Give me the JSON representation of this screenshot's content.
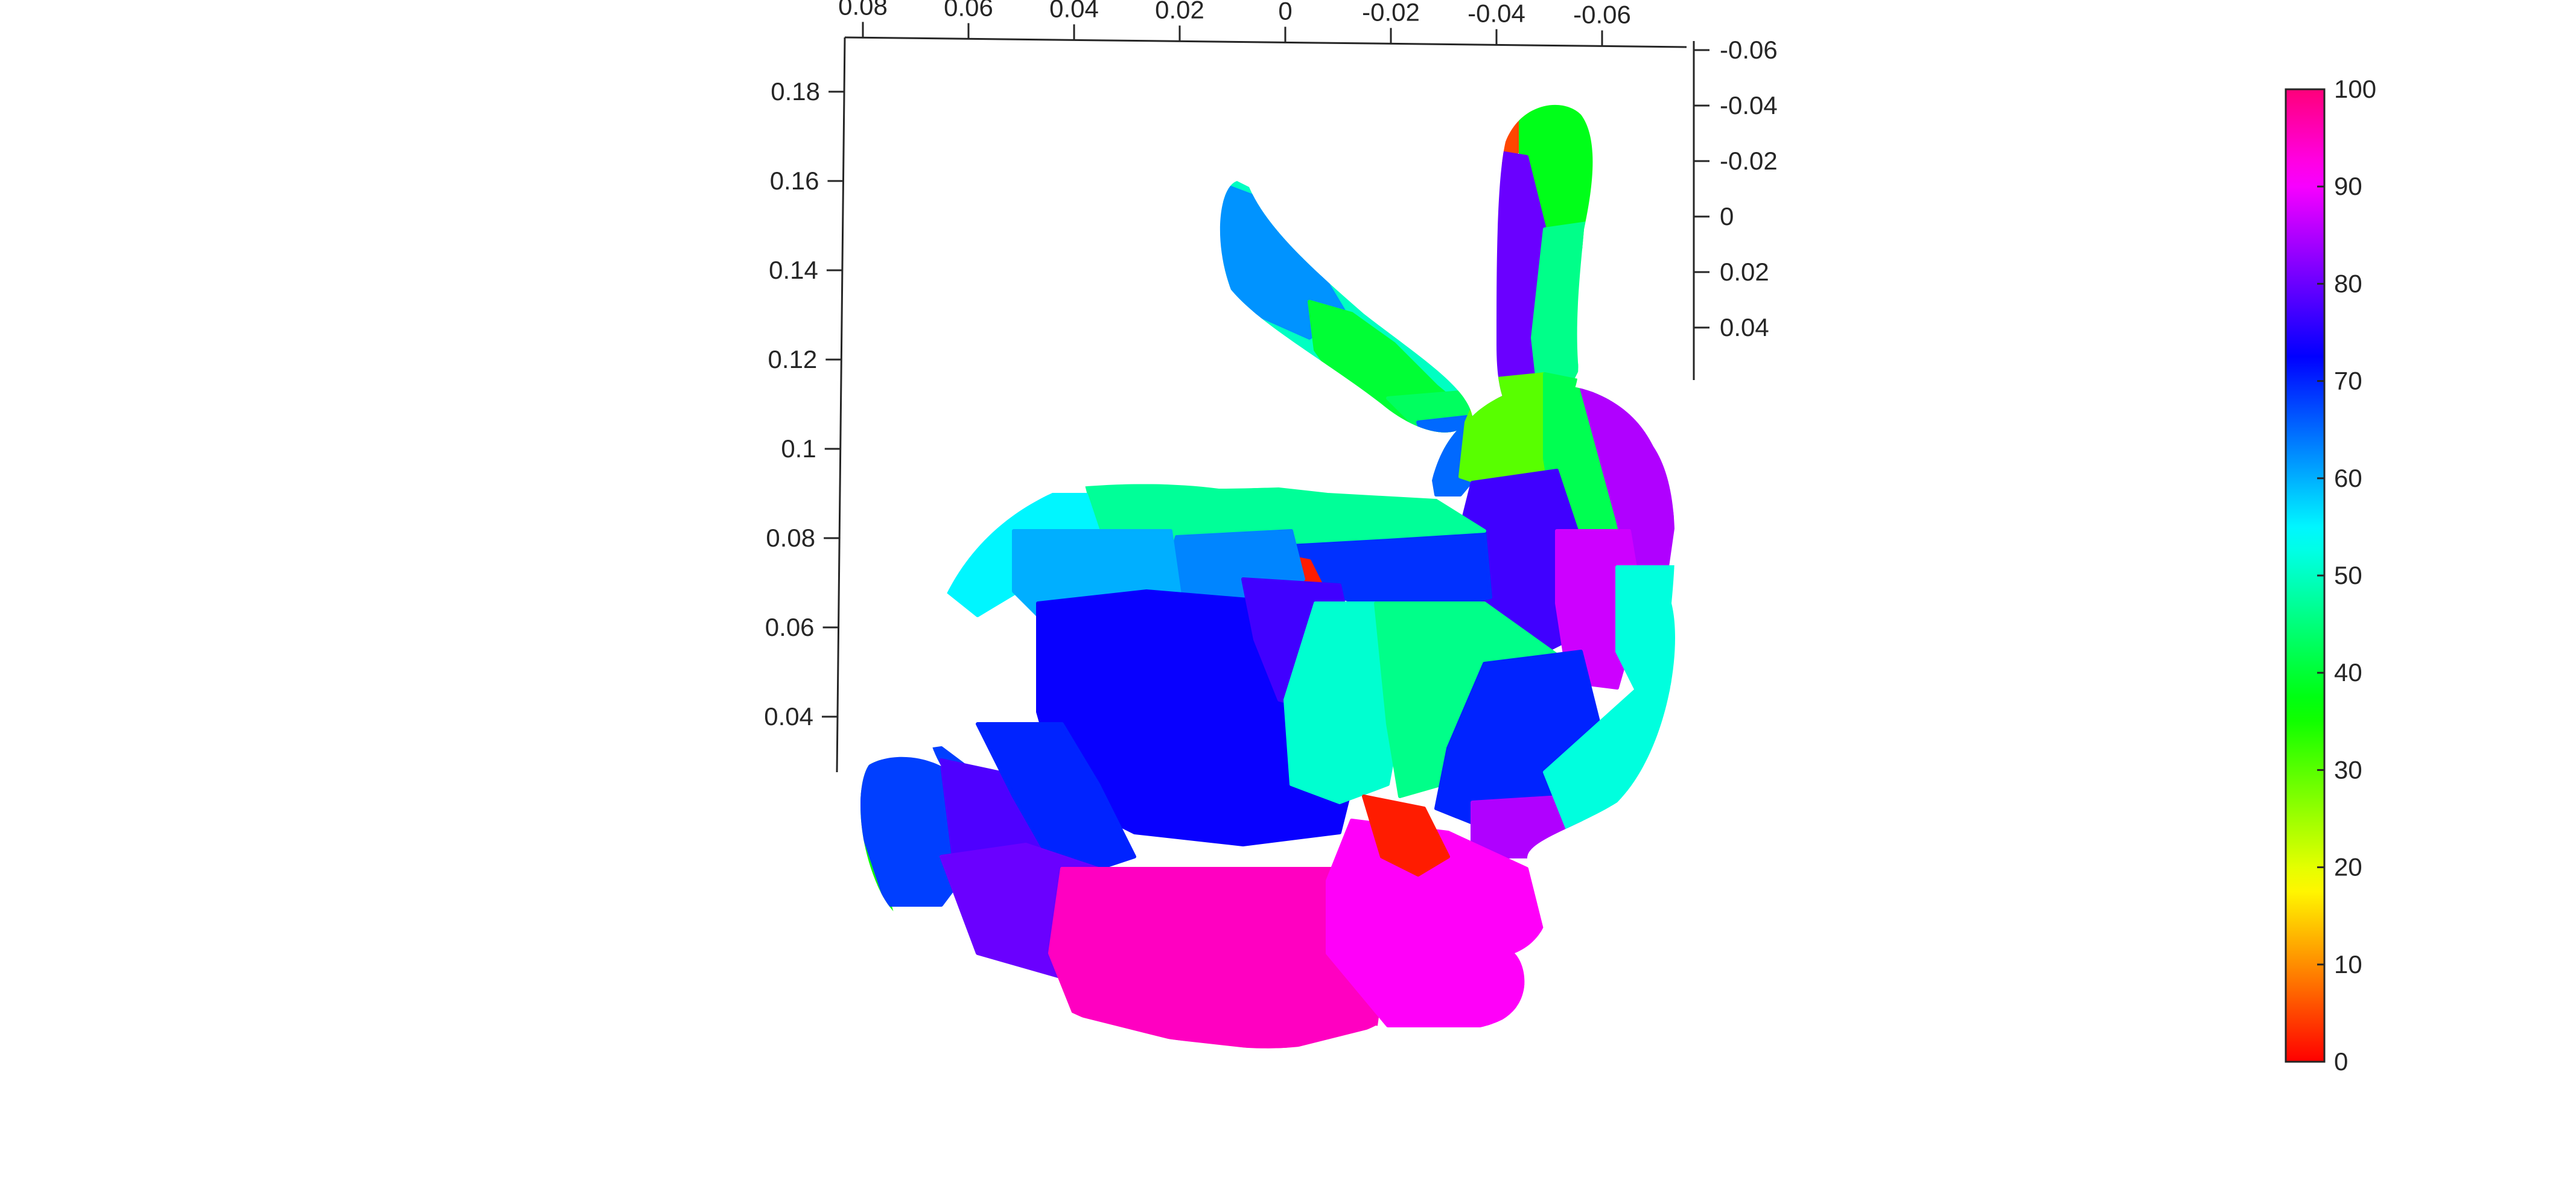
{
  "chart_data": {
    "type": "surface",
    "title": "",
    "xlabel": "",
    "ylabel": "",
    "zlabel": "",
    "grid": false,
    "box": false,
    "top_axis": {
      "ticks": [
        {
          "value": -0.06,
          "label": "-0.06"
        },
        {
          "value": -0.04,
          "label": "-0.04"
        },
        {
          "value": -0.02,
          "label": "-0.02"
        },
        {
          "value": 0,
          "label": "0"
        },
        {
          "value": 0.02,
          "label": "0.02"
        },
        {
          "value": 0.04,
          "label": "0.04"
        },
        {
          "value": 0.06,
          "label": "0.06"
        },
        {
          "value": 0.08,
          "label": "0.08"
        }
      ]
    },
    "left_axis": {
      "label": "",
      "ticks": [
        {
          "value": 0.18,
          "label": "0.18"
        },
        {
          "value": 0.16,
          "label": "0.16"
        },
        {
          "value": 0.14,
          "label": "0.14"
        },
        {
          "value": 0.12,
          "label": "0.12"
        },
        {
          "value": 0.1,
          "label": "0.1"
        },
        {
          "value": 0.08,
          "label": "0.08"
        },
        {
          "value": 0.06,
          "label": "0.06"
        },
        {
          "value": 0.04,
          "label": "0.04"
        }
      ]
    },
    "right_axis": {
      "ticks": [
        {
          "value": -0.06,
          "label": "-0.06"
        },
        {
          "value": -0.04,
          "label": "-0.04"
        },
        {
          "value": -0.02,
          "label": "-0.02"
        },
        {
          "value": 0,
          "label": "0"
        },
        {
          "value": 0.02,
          "label": "0.02"
        },
        {
          "value": 0.04,
          "label": "0.04"
        }
      ]
    },
    "colorbar": {
      "location": "right",
      "range": [
        0,
        100
      ],
      "colormap": "hsv",
      "ticks": [
        {
          "value": 100,
          "label": "100"
        },
        {
          "value": 90,
          "label": "90"
        },
        {
          "value": 80,
          "label": "80"
        },
        {
          "value": 70,
          "label": "70"
        },
        {
          "value": 60,
          "label": "60"
        },
        {
          "value": 50,
          "label": "50"
        },
        {
          "value": 40,
          "label": "40"
        },
        {
          "value": 30,
          "label": "30"
        },
        {
          "value": 20,
          "label": "20"
        },
        {
          "value": 10,
          "label": "10"
        },
        {
          "value": 0,
          "label": "0"
        }
      ]
    },
    "regions": [
      {
        "id": "ear-left-outer",
        "value": 50
      },
      {
        "id": "ear-left-inner-tip",
        "value": 62
      },
      {
        "id": "ear-left-mid",
        "value": 40
      },
      {
        "id": "ear-left-base",
        "value": 43
      },
      {
        "id": "ear-left-root",
        "value": 65
      },
      {
        "id": "ear-left-lower-edge",
        "value": 13
      },
      {
        "id": "ear-right-tip",
        "value": 5
      },
      {
        "id": "ear-right-upper",
        "value": 38
      },
      {
        "id": "ear-right-inner",
        "value": 80
      },
      {
        "id": "ear-right-cyan-band",
        "value": 46
      },
      {
        "id": "ear-right-base-green",
        "value": 30
      },
      {
        "id": "head-rear-green",
        "value": 42
      },
      {
        "id": "head-magenta-top",
        "value": 85
      },
      {
        "id": "head-purple",
        "value": 77
      },
      {
        "id": "head-magenta-side",
        "value": 87
      },
      {
        "id": "head-cyan-front",
        "value": 52
      },
      {
        "id": "neck-blue",
        "value": 69
      },
      {
        "id": "back-teal",
        "value": 47
      },
      {
        "id": "neck-red-patch",
        "value": 2
      },
      {
        "id": "back-mid-blue",
        "value": 63
      },
      {
        "id": "back-rear-cyan",
        "value": 55
      },
      {
        "id": "back-rear-blue",
        "value": 60
      },
      {
        "id": "body-center-violet",
        "value": 73
      },
      {
        "id": "body-violet-right",
        "value": 77
      },
      {
        "id": "body-cyan-patch",
        "value": 51
      },
      {
        "id": "body-teal-patch",
        "value": 46
      },
      {
        "id": "chest-blue",
        "value": 70
      },
      {
        "id": "chest-magenta",
        "value": 85
      },
      {
        "id": "tail-green-rim",
        "value": 35
      },
      {
        "id": "tail-blue",
        "value": 68
      },
      {
        "id": "hip-violet",
        "value": 78
      },
      {
        "id": "hip-blue",
        "value": 70
      },
      {
        "id": "hind-purple",
        "value": 80
      },
      {
        "id": "foot-green-patch",
        "value": 32
      },
      {
        "id": "belly-crimson",
        "value": 95
      },
      {
        "id": "front-paw-pink",
        "value": 91
      },
      {
        "id": "front-paw-red",
        "value": 2
      },
      {
        "id": "front-rim-cyan",
        "value": 52
      }
    ]
  }
}
